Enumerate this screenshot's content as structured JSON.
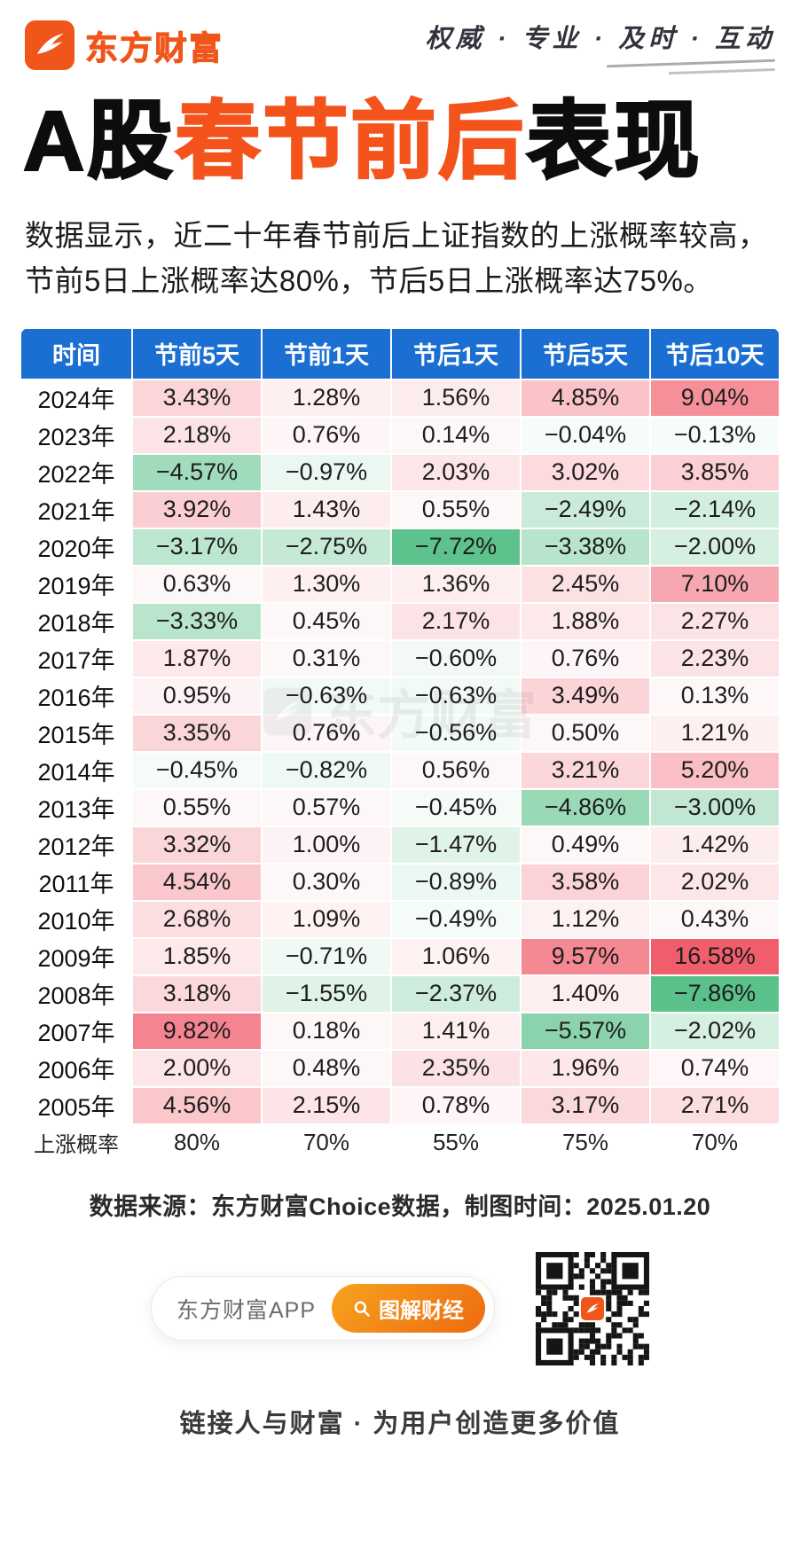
{
  "header": {
    "brand": "东方财富",
    "slogan": "权威 · 专业 · 及时 · 互动"
  },
  "title": {
    "part1": "A股",
    "part2": "春节前后",
    "part3": "表现"
  },
  "intro": "数据显示，近二十年春节前后上证指数的上涨概率较高，节前5日上涨概率达80%，节后5日上涨概率达75%。",
  "watermark": "东方财富",
  "chart_data": {
    "type": "table",
    "title": "A股春节前后表现",
    "columns": [
      "时间",
      "节前5天",
      "节前1天",
      "节后1天",
      "节后5天",
      "节后10天"
    ],
    "value_unit": "%",
    "positive_color": "#f05e6c",
    "negative_color": "#4ebc80",
    "header_color": "#1b6fd3",
    "rows": [
      {
        "year": "2024年",
        "values": [
          3.43,
          1.28,
          1.56,
          4.85,
          9.04
        ]
      },
      {
        "year": "2023年",
        "values": [
          2.18,
          0.76,
          0.14,
          -0.04,
          -0.13
        ]
      },
      {
        "year": "2022年",
        "values": [
          -4.57,
          -0.97,
          2.03,
          3.02,
          3.85
        ]
      },
      {
        "year": "2021年",
        "values": [
          3.92,
          1.43,
          0.55,
          -2.49,
          -2.14
        ]
      },
      {
        "year": "2020年",
        "values": [
          -3.17,
          -2.75,
          -7.72,
          -3.38,
          -2.0
        ]
      },
      {
        "year": "2019年",
        "values": [
          0.63,
          1.3,
          1.36,
          2.45,
          7.1
        ]
      },
      {
        "year": "2018年",
        "values": [
          -3.33,
          0.45,
          2.17,
          1.88,
          2.27
        ]
      },
      {
        "year": "2017年",
        "values": [
          1.87,
          0.31,
          -0.6,
          0.76,
          2.23
        ]
      },
      {
        "year": "2016年",
        "values": [
          0.95,
          -0.63,
          -0.63,
          3.49,
          0.13
        ]
      },
      {
        "year": "2015年",
        "values": [
          3.35,
          0.76,
          -0.56,
          0.5,
          1.21
        ]
      },
      {
        "year": "2014年",
        "values": [
          -0.45,
          -0.82,
          0.56,
          3.21,
          5.2
        ]
      },
      {
        "year": "2013年",
        "values": [
          0.55,
          0.57,
          -0.45,
          -4.86,
          -3.0
        ]
      },
      {
        "year": "2012年",
        "values": [
          3.32,
          1.0,
          -1.47,
          0.49,
          1.42
        ]
      },
      {
        "year": "2011年",
        "values": [
          4.54,
          0.3,
          -0.89,
          3.58,
          2.02
        ]
      },
      {
        "year": "2010年",
        "values": [
          2.68,
          1.09,
          -0.49,
          1.12,
          0.43
        ]
      },
      {
        "year": "2009年",
        "values": [
          1.85,
          -0.71,
          1.06,
          9.57,
          16.58
        ]
      },
      {
        "year": "2008年",
        "values": [
          3.18,
          -1.55,
          -2.37,
          1.4,
          -7.86
        ]
      },
      {
        "year": "2007年",
        "values": [
          9.82,
          0.18,
          1.41,
          -5.57,
          -2.02
        ]
      },
      {
        "year": "2006年",
        "values": [
          2.0,
          0.48,
          2.35,
          1.96,
          0.74
        ]
      },
      {
        "year": "2005年",
        "values": [
          4.56,
          2.15,
          0.78,
          3.17,
          2.71
        ]
      }
    ],
    "summary_row": {
      "label": "上涨概率",
      "values": [
        "80%",
        "70%",
        "55%",
        "75%",
        "70%"
      ]
    }
  },
  "footer": {
    "source": "数据来源：东方财富Choice数据，制图时间：2025.01.20",
    "app_label": "东方财富APP",
    "app_button": "图解财经",
    "tagline": "链接人与财富 · 为用户创造更多价值"
  }
}
